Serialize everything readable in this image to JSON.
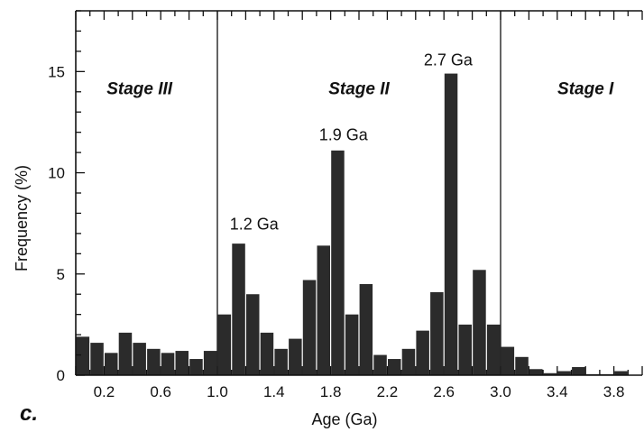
{
  "chart_data": {
    "type": "bar",
    "panel_label": "c.",
    "xlabel": "Age  (Ga)",
    "ylabel": "Frequency (%)",
    "xlim": [
      0,
      4.0
    ],
    "ylim": [
      0,
      18
    ],
    "bin_width": 0.1,
    "x_ticks": [
      0.2,
      0.6,
      1.0,
      1.4,
      1.8,
      2.2,
      2.6,
      3.0,
      3.4,
      3.8
    ],
    "x_tick_labels": [
      "0.2",
      "0.6",
      "1.0",
      "1.4",
      "1.8",
      "2.2",
      "2.6",
      "3.0",
      "3.4",
      "3.8"
    ],
    "y_ticks": [
      0,
      5,
      10,
      15
    ],
    "y_tick_labels": [
      "0",
      "5",
      "10",
      "15"
    ],
    "bins": [
      {
        "x": 0.05,
        "value": 1.9
      },
      {
        "x": 0.15,
        "value": 1.6
      },
      {
        "x": 0.25,
        "value": 1.1
      },
      {
        "x": 0.35,
        "value": 2.1
      },
      {
        "x": 0.45,
        "value": 1.6
      },
      {
        "x": 0.55,
        "value": 1.3
      },
      {
        "x": 0.65,
        "value": 1.1
      },
      {
        "x": 0.75,
        "value": 1.2
      },
      {
        "x": 0.85,
        "value": 0.8
      },
      {
        "x": 0.95,
        "value": 1.2
      },
      {
        "x": 1.05,
        "value": 3.0
      },
      {
        "x": 1.15,
        "value": 6.5
      },
      {
        "x": 1.25,
        "value": 4.0
      },
      {
        "x": 1.35,
        "value": 2.1
      },
      {
        "x": 1.45,
        "value": 1.3
      },
      {
        "x": 1.55,
        "value": 1.8
      },
      {
        "x": 1.65,
        "value": 4.7
      },
      {
        "x": 1.75,
        "value": 6.4
      },
      {
        "x": 1.85,
        "value": 11.1
      },
      {
        "x": 1.95,
        "value": 3.0
      },
      {
        "x": 2.05,
        "value": 4.5
      },
      {
        "x": 2.15,
        "value": 1.0
      },
      {
        "x": 2.25,
        "value": 0.8
      },
      {
        "x": 2.35,
        "value": 1.3
      },
      {
        "x": 2.45,
        "value": 2.2
      },
      {
        "x": 2.55,
        "value": 4.1
      },
      {
        "x": 2.65,
        "value": 14.9
      },
      {
        "x": 2.75,
        "value": 2.5
      },
      {
        "x": 2.85,
        "value": 5.2
      },
      {
        "x": 2.95,
        "value": 2.5
      },
      {
        "x": 3.05,
        "value": 1.4
      },
      {
        "x": 3.15,
        "value": 0.9
      },
      {
        "x": 3.25,
        "value": 0.3
      },
      {
        "x": 3.35,
        "value": 0.1
      },
      {
        "x": 3.45,
        "value": 0.2
      },
      {
        "x": 3.55,
        "value": 0.4
      },
      {
        "x": 3.65,
        "value": 0.05
      },
      {
        "x": 3.75,
        "value": 0.05
      },
      {
        "x": 3.85,
        "value": 0.2
      }
    ],
    "stage_boundaries": [
      1.0,
      3.0
    ],
    "stages": [
      {
        "label": "Stage III",
        "x": 0.45,
        "y": 14.2
      },
      {
        "label": "Stage II",
        "x": 2.0,
        "y": 14.2
      },
      {
        "label": "Stage I",
        "x": 3.6,
        "y": 14.2
      }
    ],
    "annotations": [
      {
        "text": "1.2 Ga",
        "x": 1.26,
        "y": 7.2
      },
      {
        "text": "1.9 Ga",
        "x": 1.89,
        "y": 11.6
      },
      {
        "text": "2.7 Ga",
        "x": 2.63,
        "y": 15.3
      }
    ],
    "colors": {
      "bar": "#2b2b2b",
      "axis": "#111111",
      "background": "#ffffff"
    }
  }
}
